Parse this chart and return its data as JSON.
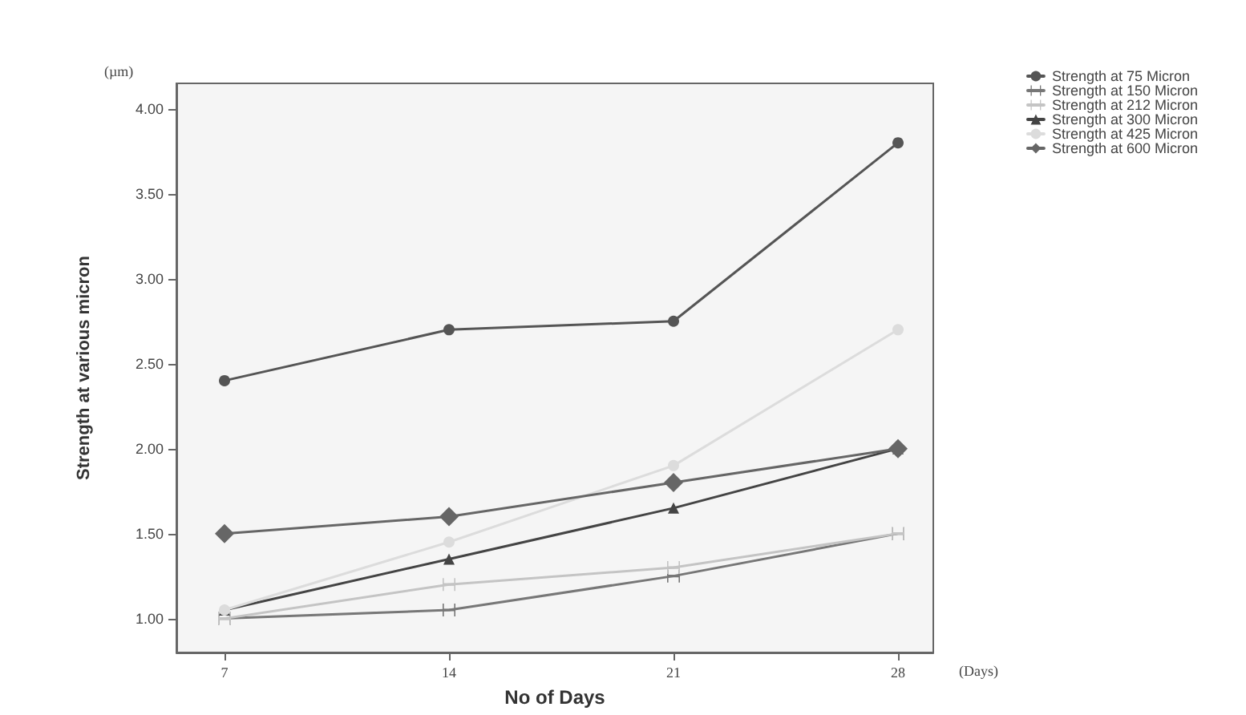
{
  "chart_data": {
    "type": "line",
    "xlabel": "No of Days",
    "ylabel": "Strength at various micron",
    "annotations": [
      "(µm)",
      "(Days)"
    ],
    "x": [
      7,
      14,
      21,
      28
    ],
    "xlim": [
      5.5,
      29.1
    ],
    "xticks": [
      7,
      14,
      21,
      28
    ],
    "ylim": [
      0.8,
      4.15
    ],
    "yticks": [
      {
        "value": 1,
        "label": "1.00"
      },
      {
        "value": 1.5,
        "label": "1.50"
      },
      {
        "value": 2,
        "label": "2.00"
      },
      {
        "value": 2.5,
        "label": "2.50"
      },
      {
        "value": 3,
        "label": "3.00"
      },
      {
        "value": 3.5,
        "label": "3.50"
      },
      {
        "value": 4,
        "label": "4.00"
      }
    ],
    "grid": false,
    "legend": "top right",
    "series": [
      {
        "name": "Strength at 75 Micron",
        "color": "#555555",
        "marker": "circle",
        "values": [
          2.4,
          2.7,
          2.75,
          3.8
        ]
      },
      {
        "name": "Strength at 150 Micron",
        "color": "#777777",
        "marker": "cross",
        "values": [
          1.0,
          1.05,
          1.25,
          1.5
        ]
      },
      {
        "name": "Strength at 212 Micron",
        "color": "#c4c4c4",
        "marker": "cross",
        "values": [
          1.0,
          1.2,
          1.3,
          1.5
        ]
      },
      {
        "name": "Strength at 300 Micron",
        "color": "#444444",
        "marker": "triangle",
        "values": [
          1.05,
          1.35,
          1.65,
          2.0
        ]
      },
      {
        "name": "Strength at 425 Micron",
        "color": "#dcdcdc",
        "marker": "circle",
        "values": [
          1.05,
          1.45,
          1.9,
          2.7
        ]
      },
      {
        "name": "Strength at 600 Micron",
        "color": "#666666",
        "marker": "diamond",
        "values": [
          1.5,
          1.6,
          1.8,
          2.0
        ]
      }
    ]
  }
}
